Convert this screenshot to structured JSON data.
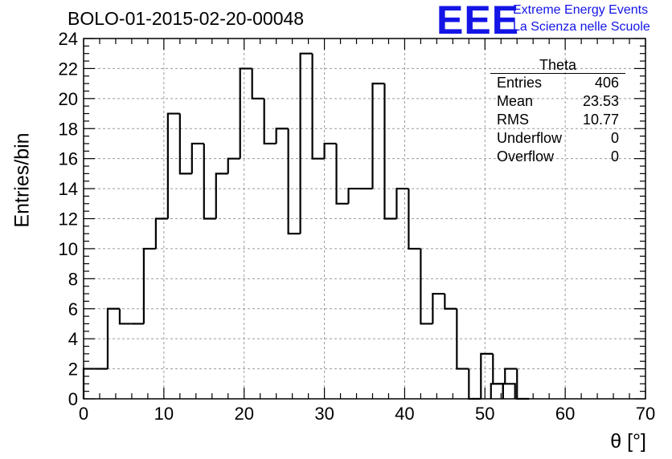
{
  "chart_data": {
    "type": "bar",
    "histogram": true,
    "title": "BOLO-01-2015-02-20-00048",
    "xlabel": "θ [°]",
    "ylabel": "Entries/bin",
    "xlim": [
      0,
      70
    ],
    "ylim": [
      0,
      24
    ],
    "grid": true,
    "bin_width": 1.5,
    "x_ticks": [
      "0",
      "10",
      "20",
      "30",
      "40",
      "50",
      "60",
      "70"
    ],
    "y_ticks": [
      "0",
      "2",
      "4",
      "6",
      "8",
      "10",
      "12",
      "14",
      "16",
      "18",
      "20",
      "22",
      "24"
    ],
    "bin_edges_start": [
      0,
      1.5,
      3,
      4.5,
      6,
      7.5,
      9,
      10.5,
      12,
      13.5,
      15,
      16.5,
      18,
      19.5,
      21,
      22.5,
      24,
      25.5,
      27,
      28.5,
      30,
      31.5,
      33,
      34.5,
      36,
      37.5,
      39,
      40.5,
      42,
      43.5,
      45,
      46.5,
      48,
      49.5,
      51,
      52.5,
      54
    ],
    "values": [
      2,
      2,
      6,
      5,
      5,
      10,
      12,
      19,
      15,
      17,
      12,
      15,
      16,
      22,
      20,
      17,
      18,
      11,
      23,
      16,
      17,
      13,
      14,
      14,
      21,
      12,
      14,
      10,
      5,
      7,
      6,
      2,
      0,
      3,
      1,
      2,
      0
    ],
    "stats_box": {
      "title": "Theta",
      "rows": [
        {
          "label": "Entries",
          "value": "406"
        },
        {
          "label": "Mean",
          "value": "23.53"
        },
        {
          "label": "RMS",
          "value": "10.77"
        },
        {
          "label": "Underflow",
          "value": "0"
        },
        {
          "label": "Overflow",
          "value": "0"
        }
      ]
    },
    "tail_values": [
      {
        "x": 51.5,
        "value": 1
      },
      {
        "x": 53,
        "value": 1
      }
    ]
  },
  "logo": {
    "mark": "EEE",
    "line1": "Extreme Energy Events",
    "line2": "La Scienza nelle Scuole",
    "color": "#1414e6"
  },
  "colors": {
    "histogram_line": "#000000",
    "grid": "#9a9a9a",
    "frame": "#000000"
  }
}
